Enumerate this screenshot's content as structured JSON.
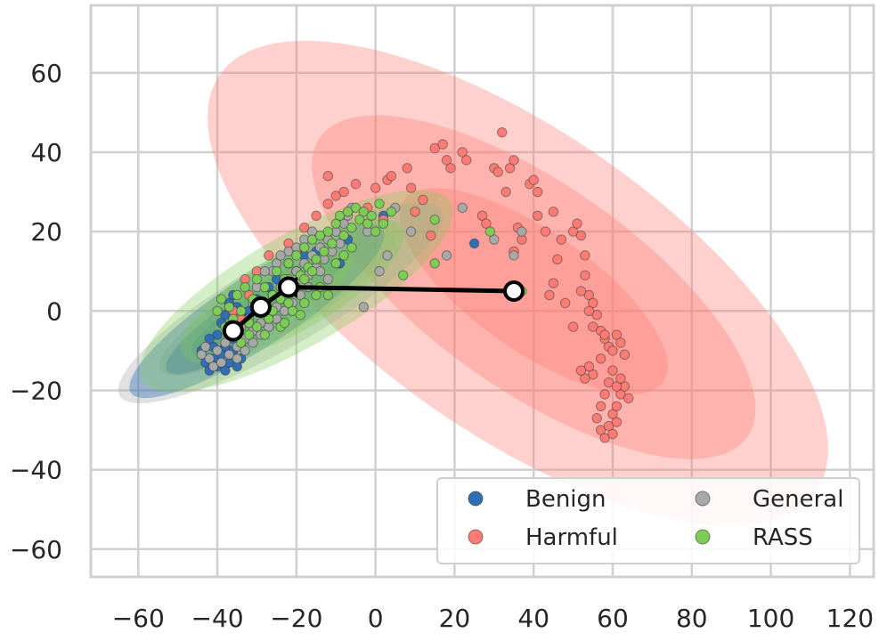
{
  "chart_data": {
    "type": "scatter",
    "title": "",
    "xlabel": "",
    "ylabel": "",
    "xlim": [
      -72,
      126
    ],
    "ylim": [
      -67,
      77
    ],
    "x_ticks": [
      -60,
      -40,
      -20,
      0,
      20,
      40,
      60,
      80,
      100,
      120
    ],
    "y_ticks": [
      -60,
      -40,
      -20,
      0,
      20,
      40,
      60
    ],
    "x_tick_labels": [
      "−60",
      "−40",
      "−20",
      "0",
      "20",
      "40",
      "60",
      "80",
      "100",
      "120"
    ],
    "y_tick_labels": [
      "−60",
      "−40",
      "−20",
      "0",
      "20",
      "40",
      "60"
    ],
    "grid": true,
    "legend_position": "bottom-right",
    "colors": {
      "Benign": "#2f6fb5",
      "Harmful": "#ff7b73",
      "General": "#a8a8a8",
      "RASS": "#7ccc55",
      "grid": "#d0d0d0",
      "arrow": "#000000"
    },
    "series": [
      {
        "name": "Benign",
        "color": "#2f6fb5",
        "points": [
          [
            -44,
            -10
          ],
          [
            -43,
            -13
          ],
          [
            -42,
            -15
          ],
          [
            -41,
            -12
          ],
          [
            -40,
            -14
          ],
          [
            -39,
            -11
          ],
          [
            -38,
            -15
          ],
          [
            -37,
            -13
          ],
          [
            -36,
            -10
          ],
          [
            -35,
            -14
          ],
          [
            -34,
            -12
          ],
          [
            -40,
            -6
          ],
          [
            -39,
            -3
          ],
          [
            -38,
            -1
          ],
          [
            -37,
            -4
          ],
          [
            -36,
            -7
          ],
          [
            -35,
            -5
          ],
          [
            -34,
            -8
          ],
          [
            -41,
            -9
          ],
          [
            -42,
            -7
          ],
          [
            -38,
            -9
          ],
          [
            -37,
            2
          ],
          [
            -36,
            4
          ],
          [
            -35,
            1
          ],
          [
            -33,
            -2
          ],
          [
            -32,
            0
          ],
          [
            -30,
            3
          ],
          [
            -28,
            2
          ],
          [
            -27,
            6
          ],
          [
            -25,
            8
          ],
          [
            -22,
            12
          ],
          [
            -20,
            10
          ],
          [
            -18,
            14
          ],
          [
            -15,
            15
          ],
          [
            -9,
            12
          ],
          [
            -7,
            18
          ],
          [
            2,
            24
          ],
          [
            25,
            17
          ]
        ]
      },
      {
        "name": "Harmful",
        "color": "#ff7b73",
        "points": [
          [
            -34,
            -2
          ],
          [
            -36,
            0
          ],
          [
            -32,
            4
          ],
          [
            -33,
            8
          ],
          [
            -30,
            10
          ],
          [
            -27,
            14
          ],
          [
            -22,
            17
          ],
          [
            -20,
            15
          ],
          [
            -18,
            21
          ],
          [
            -15,
            24
          ],
          [
            -12,
            27
          ],
          [
            -10,
            29
          ],
          [
            -12,
            34
          ],
          [
            -8,
            30
          ],
          [
            -5,
            32
          ],
          [
            0,
            31
          ],
          [
            3,
            33
          ],
          [
            4,
            34
          ],
          [
            8,
            36
          ],
          [
            10,
            25
          ],
          [
            14,
            19
          ],
          [
            15,
            41
          ],
          [
            17,
            42
          ],
          [
            18,
            38
          ],
          [
            19,
            36
          ],
          [
            22,
            40
          ],
          [
            23,
            38
          ],
          [
            27,
            24
          ],
          [
            28,
            22
          ],
          [
            30,
            36
          ],
          [
            31,
            35
          ],
          [
            32,
            45
          ],
          [
            33,
            30
          ],
          [
            34,
            36
          ],
          [
            35,
            38
          ],
          [
            35,
            15
          ],
          [
            36,
            21
          ],
          [
            37,
            18
          ],
          [
            39,
            32
          ],
          [
            40,
            33
          ],
          [
            41,
            30
          ],
          [
            41,
            24
          ],
          [
            43,
            20
          ],
          [
            45,
            25
          ],
          [
            44,
            4
          ],
          [
            45,
            7
          ],
          [
            46,
            13
          ],
          [
            47,
            18
          ],
          [
            48,
            2
          ],
          [
            50,
            20
          ],
          [
            51,
            22
          ],
          [
            52,
            19
          ],
          [
            53,
            14
          ],
          [
            53,
            9
          ],
          [
            54,
            4
          ],
          [
            55,
            2
          ],
          [
            55,
            -4
          ],
          [
            56,
            -1
          ],
          [
            57,
            -5
          ],
          [
            58,
            -7
          ],
          [
            59,
            -9
          ],
          [
            60,
            -10
          ],
          [
            61,
            -6
          ],
          [
            62,
            -8
          ],
          [
            63,
            -11
          ],
          [
            60,
            -15
          ],
          [
            59,
            -18
          ],
          [
            58,
            -21
          ],
          [
            57,
            -24
          ],
          [
            56,
            -27
          ],
          [
            57,
            -30
          ],
          [
            58,
            -32
          ],
          [
            59,
            -29
          ],
          [
            60,
            -26
          ],
          [
            61,
            -24
          ],
          [
            62,
            -21
          ],
          [
            63,
            -19
          ],
          [
            64,
            -22
          ],
          [
            60,
            -31
          ],
          [
            61,
            -28
          ],
          [
            55,
            -16
          ],
          [
            54,
            -14
          ],
          [
            53,
            -17
          ],
          [
            52,
            -15
          ],
          [
            61,
            -19
          ],
          [
            62,
            -17
          ],
          [
            57,
            -12
          ],
          [
            54,
            0
          ],
          [
            50,
            -4
          ],
          [
            52,
            5
          ],
          [
            -2,
            26
          ],
          [
            2,
            23
          ],
          [
            9,
            31
          ],
          [
            12,
            28
          ],
          [
            58,
            -6
          ]
        ]
      },
      {
        "name": "General",
        "color": "#a8a8a8",
        "points": [
          [
            -44,
            -11
          ],
          [
            -43,
            -9
          ],
          [
            -42,
            -12
          ],
          [
            -41,
            -14
          ],
          [
            -40,
            -10
          ],
          [
            -39,
            -13
          ],
          [
            -38,
            -8
          ],
          [
            -37,
            -11
          ],
          [
            -36,
            -6
          ],
          [
            -35,
            -9
          ],
          [
            -34,
            -4
          ],
          [
            -33,
            -7
          ],
          [
            -32,
            -2
          ],
          [
            -31,
            -5
          ],
          [
            -30,
            0
          ],
          [
            -29,
            -3
          ],
          [
            -28,
            2
          ],
          [
            -27,
            -1
          ],
          [
            -26,
            4
          ],
          [
            -25,
            1
          ],
          [
            -24,
            6
          ],
          [
            -23,
            3
          ],
          [
            -22,
            8
          ],
          [
            -21,
            5
          ],
          [
            -20,
            10
          ],
          [
            -19,
            7
          ],
          [
            -18,
            12
          ],
          [
            -17,
            9
          ],
          [
            -16,
            14
          ],
          [
            -15,
            11
          ],
          [
            -14,
            16
          ],
          [
            -13,
            13
          ],
          [
            -12,
            18
          ],
          [
            -11,
            15
          ],
          [
            -10,
            20
          ],
          [
            -9,
            17
          ],
          [
            -8,
            22
          ],
          [
            -7,
            24
          ],
          [
            -6,
            26
          ],
          [
            -35,
            -12
          ],
          [
            -33,
            -10
          ],
          [
            -31,
            -8
          ],
          [
            -29,
            -6
          ],
          [
            -27,
            -4
          ],
          [
            -25,
            -2
          ],
          [
            -23,
            0
          ],
          [
            -21,
            2
          ],
          [
            -19,
            4
          ],
          [
            -17,
            6
          ],
          [
            -25,
            12
          ],
          [
            -22,
            15
          ],
          [
            -20,
            16
          ],
          [
            -26,
            10
          ],
          [
            -24,
            14
          ],
          [
            -18,
            18
          ],
          [
            -16,
            20
          ],
          [
            -14,
            10
          ],
          [
            -12,
            8
          ],
          [
            -31,
            2
          ],
          [
            -30,
            6
          ],
          [
            -28,
            10
          ],
          [
            -3,
            1
          ],
          [
            1,
            10
          ],
          [
            5,
            26
          ],
          [
            9,
            20
          ],
          [
            18,
            14
          ],
          [
            22,
            26
          ],
          [
            30,
            18
          ],
          [
            35,
            14
          ],
          [
            37,
            20
          ],
          [
            -2,
            20
          ],
          [
            3,
            14
          ]
        ]
      },
      {
        "name": "RASS",
        "color": "#7ccc55",
        "points": [
          [
            -40,
            0
          ],
          [
            -39,
            3
          ],
          [
            -38,
            -4
          ],
          [
            -37,
            1
          ],
          [
            -36,
            -2
          ],
          [
            -35,
            4
          ],
          [
            -34,
            0
          ],
          [
            -33,
            6
          ],
          [
            -32,
            -3
          ],
          [
            -31,
            3
          ],
          [
            -30,
            8
          ],
          [
            -29,
            1
          ],
          [
            -28,
            6
          ],
          [
            -27,
            -2
          ],
          [
            -26,
            4
          ],
          [
            -25,
            10
          ],
          [
            -24,
            3
          ],
          [
            -23,
            8
          ],
          [
            -22,
            12
          ],
          [
            -21,
            5
          ],
          [
            -20,
            14
          ],
          [
            -19,
            9
          ],
          [
            -18,
            16
          ],
          [
            -17,
            11
          ],
          [
            -16,
            18
          ],
          [
            -15,
            13
          ],
          [
            -14,
            19
          ],
          [
            -13,
            15
          ],
          [
            -12,
            20
          ],
          [
            -11,
            17
          ],
          [
            -10,
            22
          ],
          [
            -9,
            24
          ],
          [
            -8,
            19
          ],
          [
            -7,
            25
          ],
          [
            -6,
            21
          ],
          [
            -5,
            26
          ],
          [
            -4,
            23
          ],
          [
            -3,
            25
          ],
          [
            -2,
            22
          ],
          [
            -1,
            24
          ],
          [
            0,
            20
          ],
          [
            1,
            27
          ],
          [
            2,
            22
          ],
          [
            4,
            25
          ],
          [
            -30,
            -4
          ],
          [
            -28,
            -6
          ],
          [
            -26,
            0
          ],
          [
            -24,
            -4
          ],
          [
            -22,
            2
          ],
          [
            -20,
            6
          ],
          [
            -18,
            8
          ],
          [
            -16,
            10
          ],
          [
            -14,
            6
          ],
          [
            -12,
            4
          ],
          [
            -32,
            -6
          ],
          [
            -34,
            -8
          ],
          [
            -21,
            0
          ],
          [
            -19,
            -1
          ],
          [
            -23,
            -3
          ],
          [
            7,
            9
          ],
          [
            15,
            23
          ],
          [
            15,
            12
          ],
          [
            29,
            20
          ],
          [
            37,
            5
          ],
          [
            -18,
            2
          ],
          [
            -15,
            4
          ],
          [
            -10,
            12
          ],
          [
            -8,
            14
          ],
          [
            -6,
            16
          ]
        ]
      }
    ],
    "ellipses": [
      {
        "series": "Harmful",
        "cx": 36,
        "cy": 7,
        "rx": 92,
        "ry": 38,
        "angle_deg": -35,
        "opacity": 0.35
      },
      {
        "series": "Harmful",
        "cx": 40,
        "cy": 6,
        "rx": 66,
        "ry": 26,
        "angle_deg": -35,
        "opacity": 0.35
      },
      {
        "series": "Harmful",
        "cx": 40,
        "cy": 5,
        "rx": 40,
        "ry": 15,
        "angle_deg": -35,
        "opacity": 0.35
      },
      {
        "series": "General",
        "cx": -24,
        "cy": 2,
        "rx": 47,
        "ry": 11,
        "angle_deg": 30,
        "opacity": 0.35
      },
      {
        "series": "General",
        "cx": -25,
        "cy": 2,
        "rx": 34,
        "ry": 8,
        "angle_deg": 30,
        "opacity": 0.35
      },
      {
        "series": "General",
        "cx": -27,
        "cy": 1,
        "rx": 22,
        "ry": 5,
        "angle_deg": 30,
        "opacity": 0.35
      },
      {
        "series": "Benign",
        "cx": -30,
        "cy": 0,
        "rx": 38,
        "ry": 9,
        "angle_deg": 33,
        "opacity": 0.4
      },
      {
        "series": "Benign",
        "cx": -31,
        "cy": -1,
        "rx": 26,
        "ry": 6,
        "angle_deg": 33,
        "opacity": 0.4
      },
      {
        "series": "Benign",
        "cx": -33,
        "cy": -2,
        "rx": 16,
        "ry": 4,
        "angle_deg": 33,
        "opacity": 0.4
      },
      {
        "series": "RASS",
        "cx": -20,
        "cy": 5,
        "rx": 45,
        "ry": 14,
        "angle_deg": 30,
        "opacity": 0.33
      },
      {
        "series": "RASS",
        "cx": -21,
        "cy": 5,
        "rx": 32,
        "ry": 10,
        "angle_deg": 30,
        "opacity": 0.33
      },
      {
        "series": "RASS",
        "cx": -23,
        "cy": 4,
        "rx": 20,
        "ry": 6,
        "angle_deg": 30,
        "opacity": 0.33
      }
    ],
    "centroid_path": [
      [
        35,
        5
      ],
      [
        -22,
        6
      ],
      [
        -29,
        1
      ],
      [
        -36,
        -5
      ]
    ],
    "legend": {
      "entries": [
        {
          "label": "Benign",
          "color": "#2f6fb5"
        },
        {
          "label": "General",
          "color": "#a8a8a8"
        },
        {
          "label": "Harmful",
          "color": "#ff7b73"
        },
        {
          "label": "RASS",
          "color": "#7ccc55"
        }
      ]
    }
  }
}
